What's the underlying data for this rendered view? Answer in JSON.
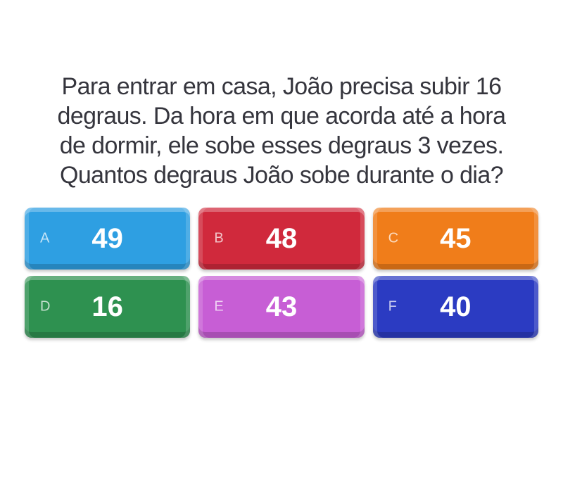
{
  "page": {
    "background": "#ffffff",
    "question_text_color": "#35353d"
  },
  "question": {
    "lines": [
      "Para entrar em casa, João precisa subir 16",
      "degraus. Da hora em que acorda até a hora",
      "de dormir, ele sobe esses degraus 3 vezes.",
      "Quantos degraus João sobe durante o dia?"
    ]
  },
  "options": [
    {
      "letter": "A",
      "value": "49",
      "color": "#2e9fe2"
    },
    {
      "letter": "B",
      "value": "48",
      "color": "#d0293c"
    },
    {
      "letter": "C",
      "value": "45",
      "color": "#f07d1a"
    },
    {
      "letter": "D",
      "value": "16",
      "color": "#2e9150"
    },
    {
      "letter": "E",
      "value": "43",
      "color": "#c75ed5"
    },
    {
      "letter": "F",
      "value": "40",
      "color": "#2b3bc2"
    }
  ]
}
